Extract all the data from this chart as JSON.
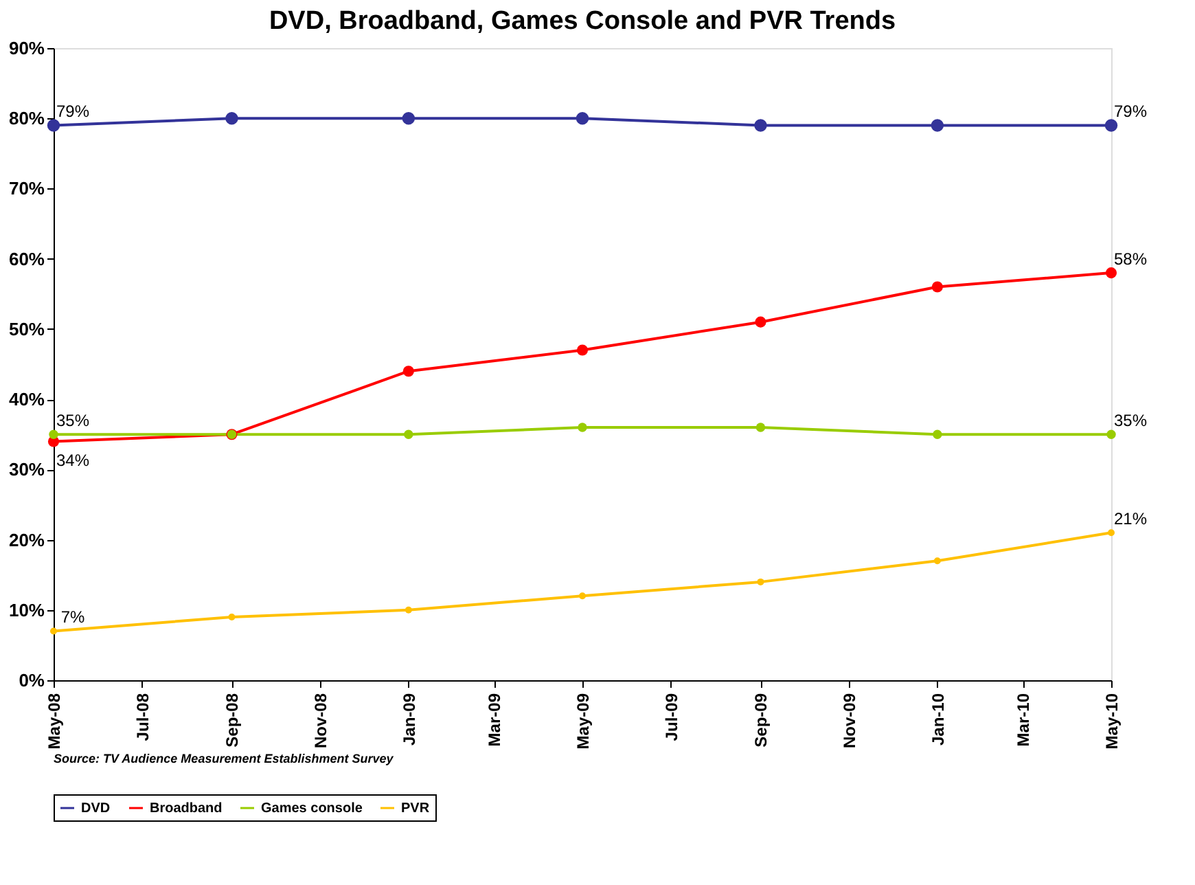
{
  "chart_data": {
    "type": "line",
    "title": "DVD, Broadband, Games Console and PVR Trends",
    "x": [
      "2008-05",
      "2008-09",
      "2009-01",
      "2009-05",
      "2009-09",
      "2010-01",
      "2010-05"
    ],
    "series": [
      {
        "name": "DVD",
        "color": "#333399",
        "values": [
          79,
          80,
          80,
          80,
          79,
          79,
          79
        ],
        "value_labels": [
          "79%",
          null,
          null,
          null,
          null,
          null,
          "79%"
        ]
      },
      {
        "name": "Broadband",
        "color": "#ff0000",
        "values": [
          34,
          35,
          44,
          47,
          51,
          56,
          58
        ],
        "value_labels": [
          "34%",
          null,
          null,
          null,
          null,
          null,
          "58%"
        ]
      },
      {
        "name": "Games console",
        "color": "#99cc00",
        "values": [
          35,
          35,
          35,
          36,
          36,
          35,
          35
        ],
        "value_labels": [
          "35%",
          null,
          null,
          null,
          null,
          null,
          "35%"
        ]
      },
      {
        "name": "PVR",
        "color": "#ffc000",
        "values": [
          7,
          9,
          10,
          12,
          14,
          17,
          21
        ],
        "value_labels": [
          "7%",
          null,
          null,
          null,
          null,
          null,
          "21%"
        ]
      }
    ],
    "xlim": [
      "2008-05",
      "2010-05"
    ],
    "xticks": [
      {
        "value": "2008-05",
        "label": "May-08"
      },
      {
        "value": "2008-07",
        "label": "Jul-08"
      },
      {
        "value": "2008-09",
        "label": "Sep-08"
      },
      {
        "value": "2008-11",
        "label": "Nov-08"
      },
      {
        "value": "2009-01",
        "label": "Jan-09"
      },
      {
        "value": "2009-03",
        "label": "Mar-09"
      },
      {
        "value": "2009-05",
        "label": "May-09"
      },
      {
        "value": "2009-07",
        "label": "Jul-09"
      },
      {
        "value": "2009-09",
        "label": "Sep-09"
      },
      {
        "value": "2009-11",
        "label": "Nov-09"
      },
      {
        "value": "2010-01",
        "label": "Jan-10"
      },
      {
        "value": "2010-03",
        "label": "Mar-10"
      },
      {
        "value": "2010-05",
        "label": "May-10"
      }
    ],
    "ylim": [
      0,
      90
    ],
    "yticks": [
      {
        "value": 0,
        "label": "0%"
      },
      {
        "value": 10,
        "label": "10%"
      },
      {
        "value": 20,
        "label": "20%"
      },
      {
        "value": 30,
        "label": "30%"
      },
      {
        "value": 40,
        "label": "40%"
      },
      {
        "value": 50,
        "label": "50%"
      },
      {
        "value": 60,
        "label": "60%"
      },
      {
        "value": 70,
        "label": "70%"
      },
      {
        "value": 80,
        "label": "80%"
      },
      {
        "value": 90,
        "label": "90%"
      }
    ],
    "grid": false,
    "legend": "bottom",
    "marker": "circle",
    "line_style": "solid",
    "annotations": [
      "Source: TV Audience Measurement Establishment Survey"
    ]
  }
}
